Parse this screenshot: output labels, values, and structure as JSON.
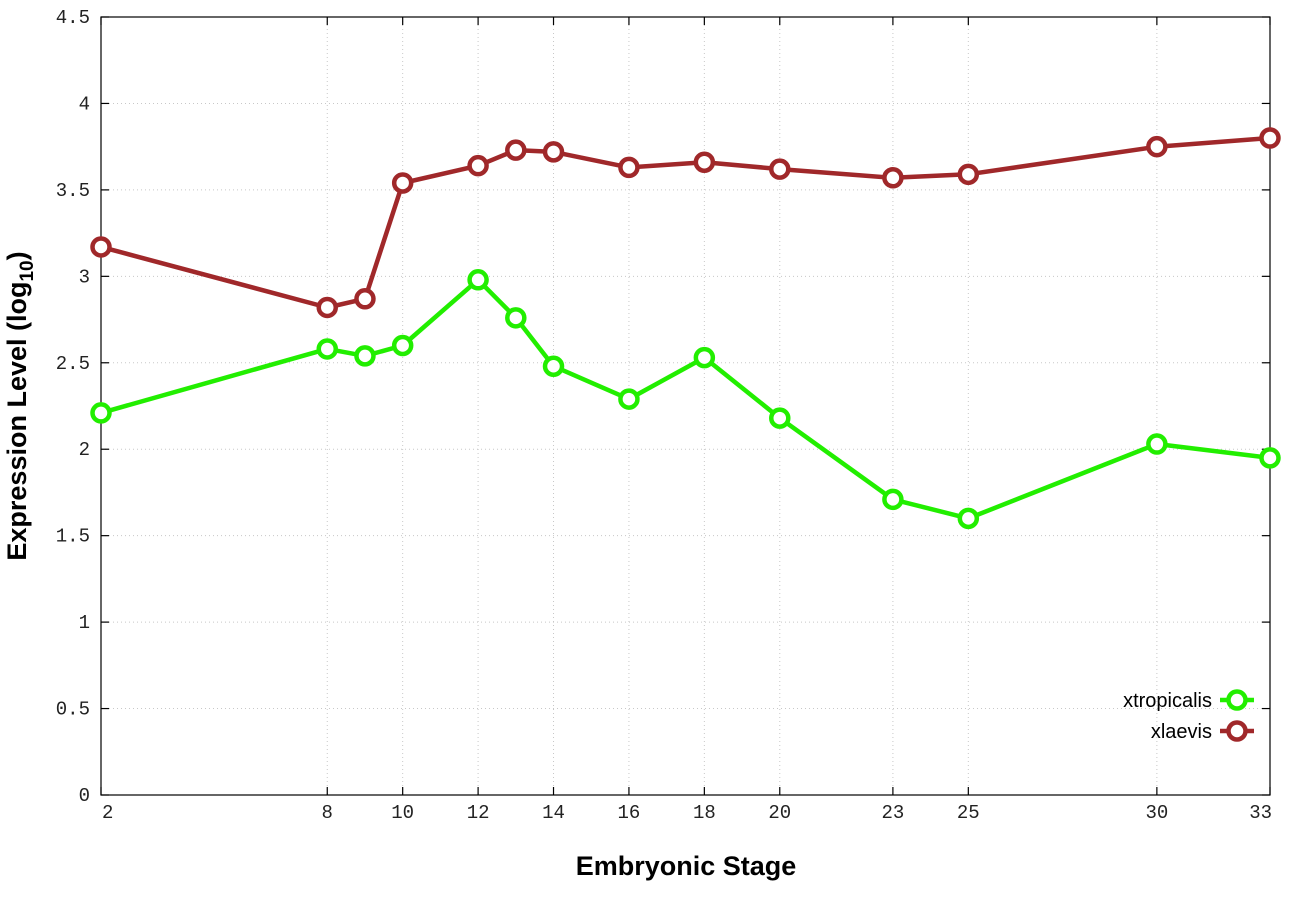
{
  "chart_data": {
    "type": "line",
    "title": "",
    "xlabel": "Embryonic Stage",
    "ylabel_main": "Expression Level (log",
    "ylabel_sub": "10",
    "ylabel_close": ")",
    "x": [
      2,
      8,
      9,
      10,
      12,
      13,
      14,
      16,
      18,
      20,
      23,
      25,
      30,
      33
    ],
    "xticks": [
      2,
      8,
      10,
      12,
      14,
      16,
      18,
      20,
      23,
      25,
      30,
      33
    ],
    "xlim": [
      2,
      33
    ],
    "ylim": [
      0,
      4.5
    ],
    "yticks": [
      "0",
      "0.5",
      "1",
      "1.5",
      "2",
      "2.5",
      "3",
      "3.5",
      "4",
      "4.5"
    ],
    "grid": true,
    "legend_position": "bottom-right",
    "series": [
      {
        "name": "xtropicalis",
        "color": "#22ee00",
        "marker": "open-circle",
        "values": [
          2.21,
          2.58,
          2.54,
          2.6,
          2.98,
          2.76,
          2.48,
          2.29,
          2.53,
          2.18,
          1.71,
          1.6,
          2.03,
          1.95
        ]
      },
      {
        "name": "xlaevis",
        "color": "#a0282a",
        "marker": "open-circle",
        "values": [
          3.17,
          2.82,
          2.87,
          3.54,
          3.64,
          3.73,
          3.72,
          3.63,
          3.66,
          3.62,
          3.57,
          3.59,
          3.75,
          3.8
        ]
      }
    ]
  }
}
